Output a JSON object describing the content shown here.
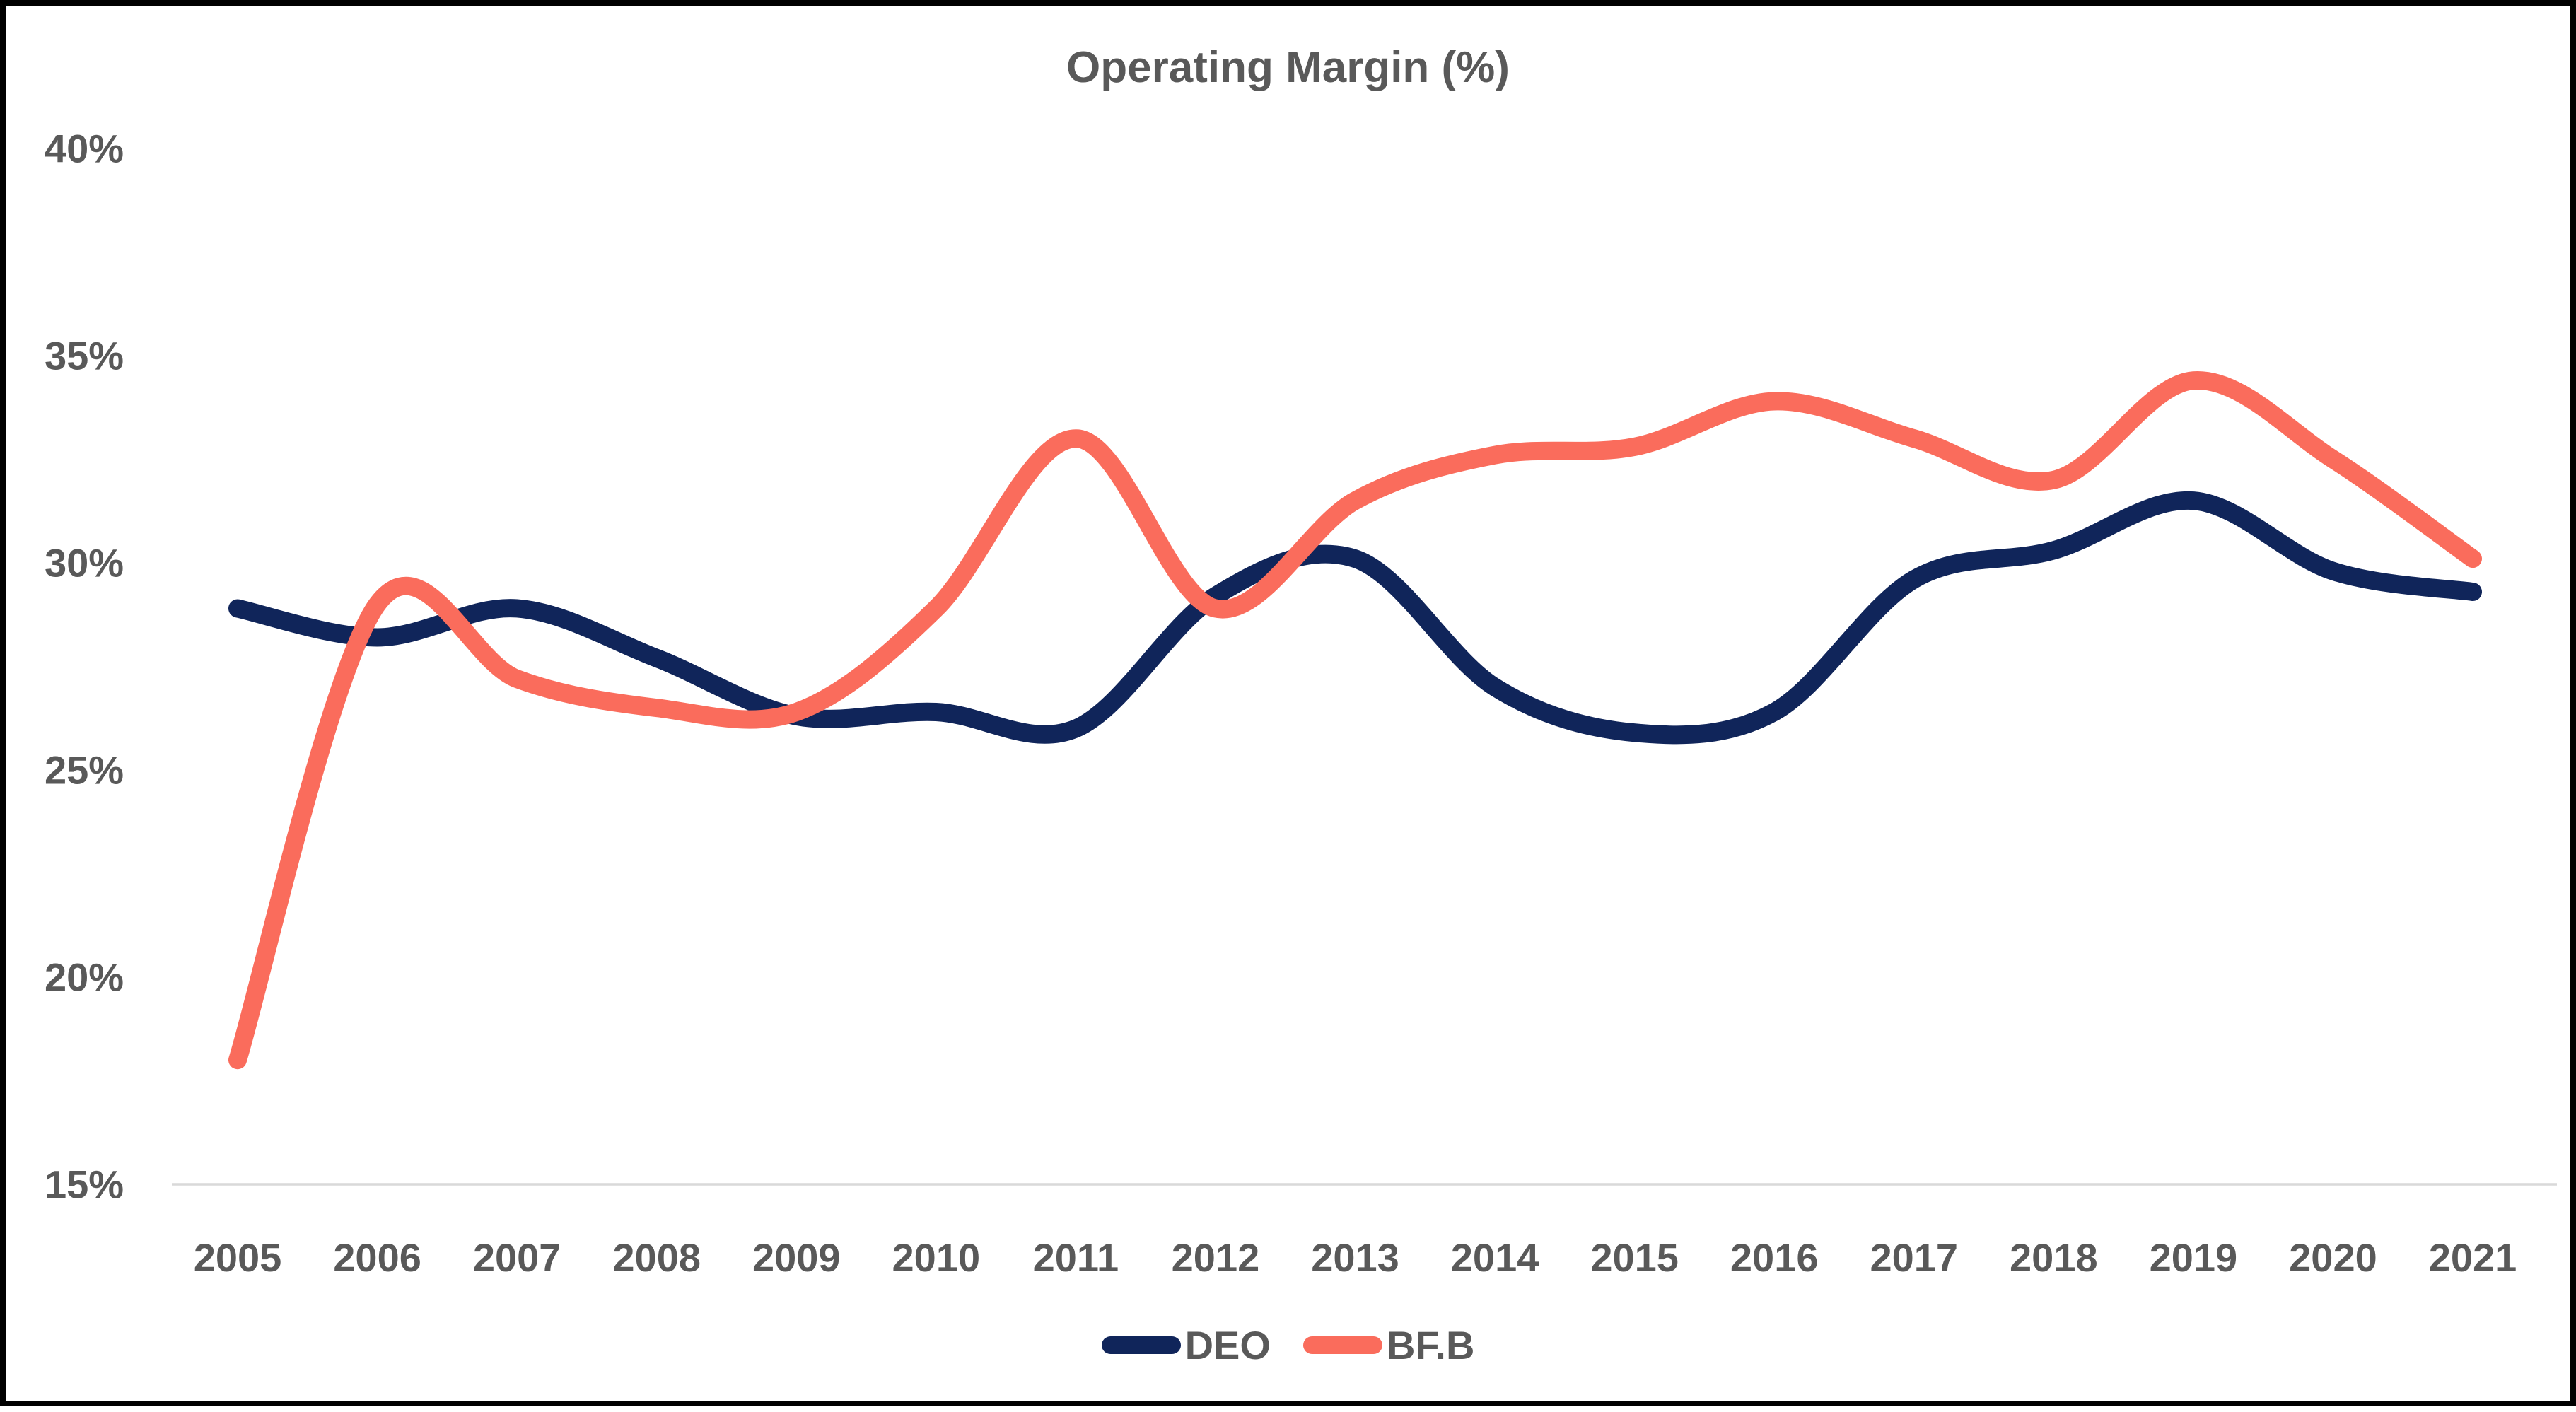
{
  "chart_data": {
    "type": "line",
    "title": "Operating Margin (%)",
    "x": [
      2005,
      2006,
      2007,
      2008,
      2009,
      2010,
      2011,
      2012,
      2013,
      2014,
      2015,
      2016,
      2017,
      2018,
      2019,
      2020,
      2021
    ],
    "series": [
      {
        "name": "DEO",
        "color": "#10255a",
        "values": [
          28.9,
          28.2,
          28.9,
          27.7,
          26.3,
          26.4,
          26.0,
          29.2,
          30.1,
          27.0,
          25.9,
          26.4,
          29.6,
          30.3,
          31.5,
          29.8,
          29.3
        ]
      },
      {
        "name": "BF.B",
        "color": "#fa6c5c",
        "values": [
          18.0,
          29.0,
          27.2,
          26.5,
          26.4,
          28.9,
          33.0,
          28.9,
          31.5,
          32.6,
          32.8,
          33.9,
          33.0,
          32.0,
          34.4,
          32.5,
          30.1
        ]
      }
    ],
    "xlabel": "",
    "ylabel": "",
    "ylim": [
      15,
      40
    ],
    "y_ticks": [
      {
        "label": "40%",
        "value": 40
      },
      {
        "label": "35%",
        "value": 35
      },
      {
        "label": "30%",
        "value": 30
      },
      {
        "label": "25%",
        "value": 25
      },
      {
        "label": "20%",
        "value": 20
      },
      {
        "label": "15%",
        "value": 15
      }
    ],
    "grid": "baseline-only",
    "smooth": true,
    "legend_position": "bottom-center",
    "text_color": "#595959",
    "axis_color": "#d9d9d9",
    "background_color": "#ffffff",
    "border_color": "#000000"
  },
  "legend": {
    "items": [
      {
        "label": "DEO",
        "color": "#10255a"
      },
      {
        "label": "BF.B",
        "color": "#fa6c5c"
      }
    ]
  }
}
